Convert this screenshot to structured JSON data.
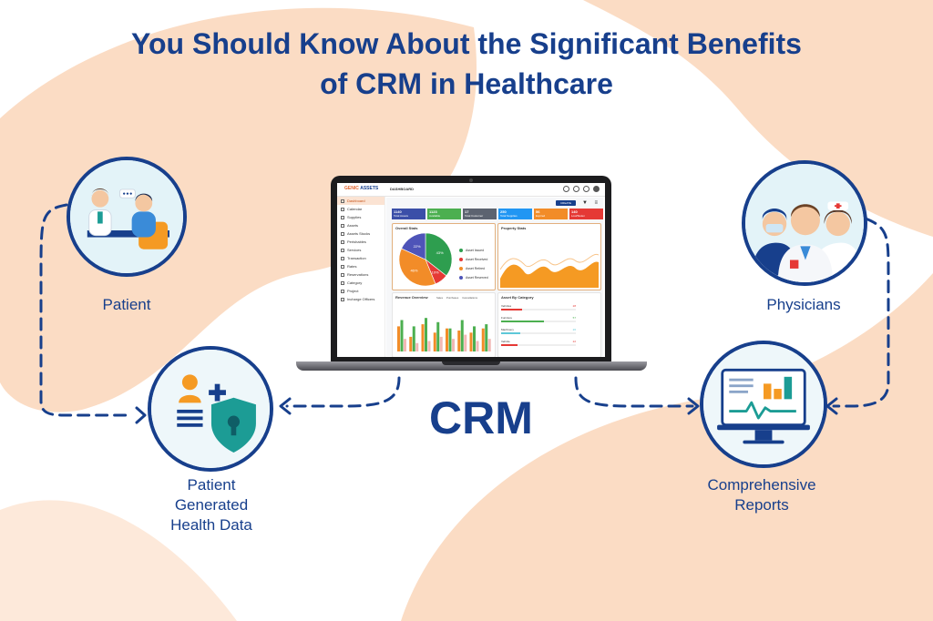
{
  "title": {
    "line1": "You Should Know About the Significant Benefits",
    "line2": "of CRM in Healthcare"
  },
  "center": {
    "label": "CRM"
  },
  "nodes": {
    "patient": {
      "label": "Patient",
      "icon": "doctor-patient-consultation-icon"
    },
    "phgd": {
      "label_lines": [
        "Patient",
        "Generated",
        "Health Data"
      ],
      "icon": "health-data-shield-icon"
    },
    "physicians": {
      "label": "Physicians",
      "icon": "physicians-group-icon"
    },
    "reports": {
      "label_lines": [
        "Comprehensive",
        "Reports"
      ],
      "icon": "report-monitor-icon"
    }
  },
  "colors": {
    "navy": "#173f8c",
    "peach_blob": "#fbdcc4",
    "teal": "#1c9c95",
    "orange": "#f59a23",
    "node_fill": "#eef7fa"
  },
  "dashboard": {
    "logo_part1": "GENIC",
    "logo_part2": "ASSETS",
    "breadcrumb": "DASHBOARD",
    "create_button": "CREATE",
    "sidebar": [
      "Dashboard",
      "Calendar",
      "Supplies",
      "Assets",
      "Assets Stocks",
      "Perishables",
      "Services",
      "Transaction",
      "Rates",
      "Reservations",
      "Category",
      "Project",
      "Incharge Officers"
    ],
    "kpis": [
      {
        "value": "1140",
        "label": "Total Assets",
        "color": "#3b4fa8"
      },
      {
        "value": "1123",
        "label": "Available",
        "color": "#4caf50"
      },
      {
        "value": "17",
        "label": "Total Customer",
        "color": "#5c6370"
      },
      {
        "value": "250",
        "label": "Total Supplies",
        "color": "#2196f3"
      },
      {
        "value": "56",
        "label": "Expired",
        "color": "#f28c28"
      },
      {
        "value": "140",
        "label": "Lost/Stolen",
        "color": "#e53935"
      }
    ],
    "overall_stats": {
      "title": "Overall Stats",
      "slices": [
        {
          "label": "Asset Issued",
          "value": 43,
          "text": "43%",
          "color": "#2e9e4f"
        },
        {
          "label": "Asset Received",
          "value": 10,
          "text": "10%",
          "color": "#e53935"
        },
        {
          "label": "Asset Retired",
          "value": 46,
          "text": "46%",
          "color": "#f28c28"
        },
        {
          "label": "Asset Reserved",
          "value": 22,
          "text": "22%",
          "color": "#4e54b8"
        }
      ]
    },
    "property_stats": {
      "title": "Property Stats"
    },
    "revenue_overview": {
      "title": "Revenue Overview",
      "legend": [
        "Sales",
        "Purchases",
        "Cancellations"
      ],
      "series": [
        {
          "name": "Sales",
          "color": "#f28c28",
          "values": [
            60,
            35,
            65,
            45,
            55,
            50,
            45,
            55
          ]
        },
        {
          "name": "Purchases",
          "color": "#4caf50",
          "values": [
            75,
            60,
            80,
            70,
            55,
            75,
            60,
            65
          ]
        },
        {
          "name": "Cancellations",
          "color": "#f2b8b5",
          "values": [
            30,
            20,
            25,
            35,
            30,
            40,
            25,
            30
          ]
        }
      ]
    },
    "asset_category": {
      "title": "Asset By Category",
      "items": [
        {
          "label": "Vehicles",
          "value": "28",
          "color": "#e53935",
          "fill": 0.28
        },
        {
          "label": "Furniture",
          "value": "57",
          "color": "#4caf50",
          "fill": 0.57
        },
        {
          "label": "Machinery",
          "value": "26",
          "color": "#5dc8d8",
          "fill": 0.26
        },
        {
          "label": "Vehicle",
          "value": "22",
          "color": "#e53935",
          "fill": 0.22
        }
      ]
    }
  }
}
